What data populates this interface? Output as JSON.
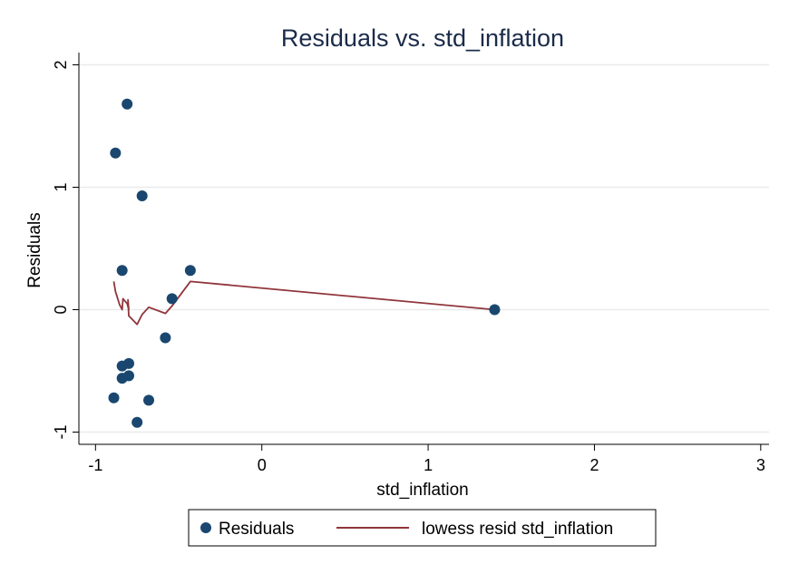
{
  "chart_data": {
    "type": "scatter",
    "title": "Residuals vs. std_inflation",
    "xlabel": "std_inflation",
    "ylabel": "Residuals",
    "xlim": [
      -1.1,
      3.05
    ],
    "ylim": [
      -1.1,
      2.1
    ],
    "xticks": [
      -1,
      0,
      1,
      2,
      3
    ],
    "yticks": [
      -1,
      0,
      1,
      2
    ],
    "grid": true,
    "legend_position": "bottom",
    "series": [
      {
        "name": "Residuals",
        "kind": "points",
        "color": "#1a476f",
        "x": [
          -0.81,
          -0.88,
          -0.72,
          -0.84,
          -0.43,
          -0.54,
          -0.58,
          -0.84,
          -0.8,
          -0.84,
          -0.8,
          -0.89,
          -0.68,
          -0.75,
          1.4
        ],
        "y": [
          1.68,
          1.28,
          0.93,
          0.32,
          0.32,
          0.09,
          -0.23,
          -0.46,
          -0.44,
          -0.56,
          -0.54,
          -0.72,
          -0.74,
          -0.92,
          0.0
        ]
      },
      {
        "name": "lowess resid std_inflation",
        "kind": "line",
        "color": "#90353b",
        "x": [
          -0.89,
          -0.88,
          -0.855,
          -0.84,
          -0.835,
          -0.81,
          -0.8,
          -0.805,
          -0.8,
          -0.75,
          -0.72,
          -0.68,
          -0.58,
          -0.54,
          -0.43,
          1.4
        ],
        "y": [
          0.23,
          0.15,
          0.04,
          0.0,
          0.09,
          0.05,
          0.0,
          0.08,
          -0.05,
          -0.12,
          -0.04,
          0.02,
          -0.03,
          0.03,
          0.23,
          0.0
        ]
      }
    ]
  }
}
